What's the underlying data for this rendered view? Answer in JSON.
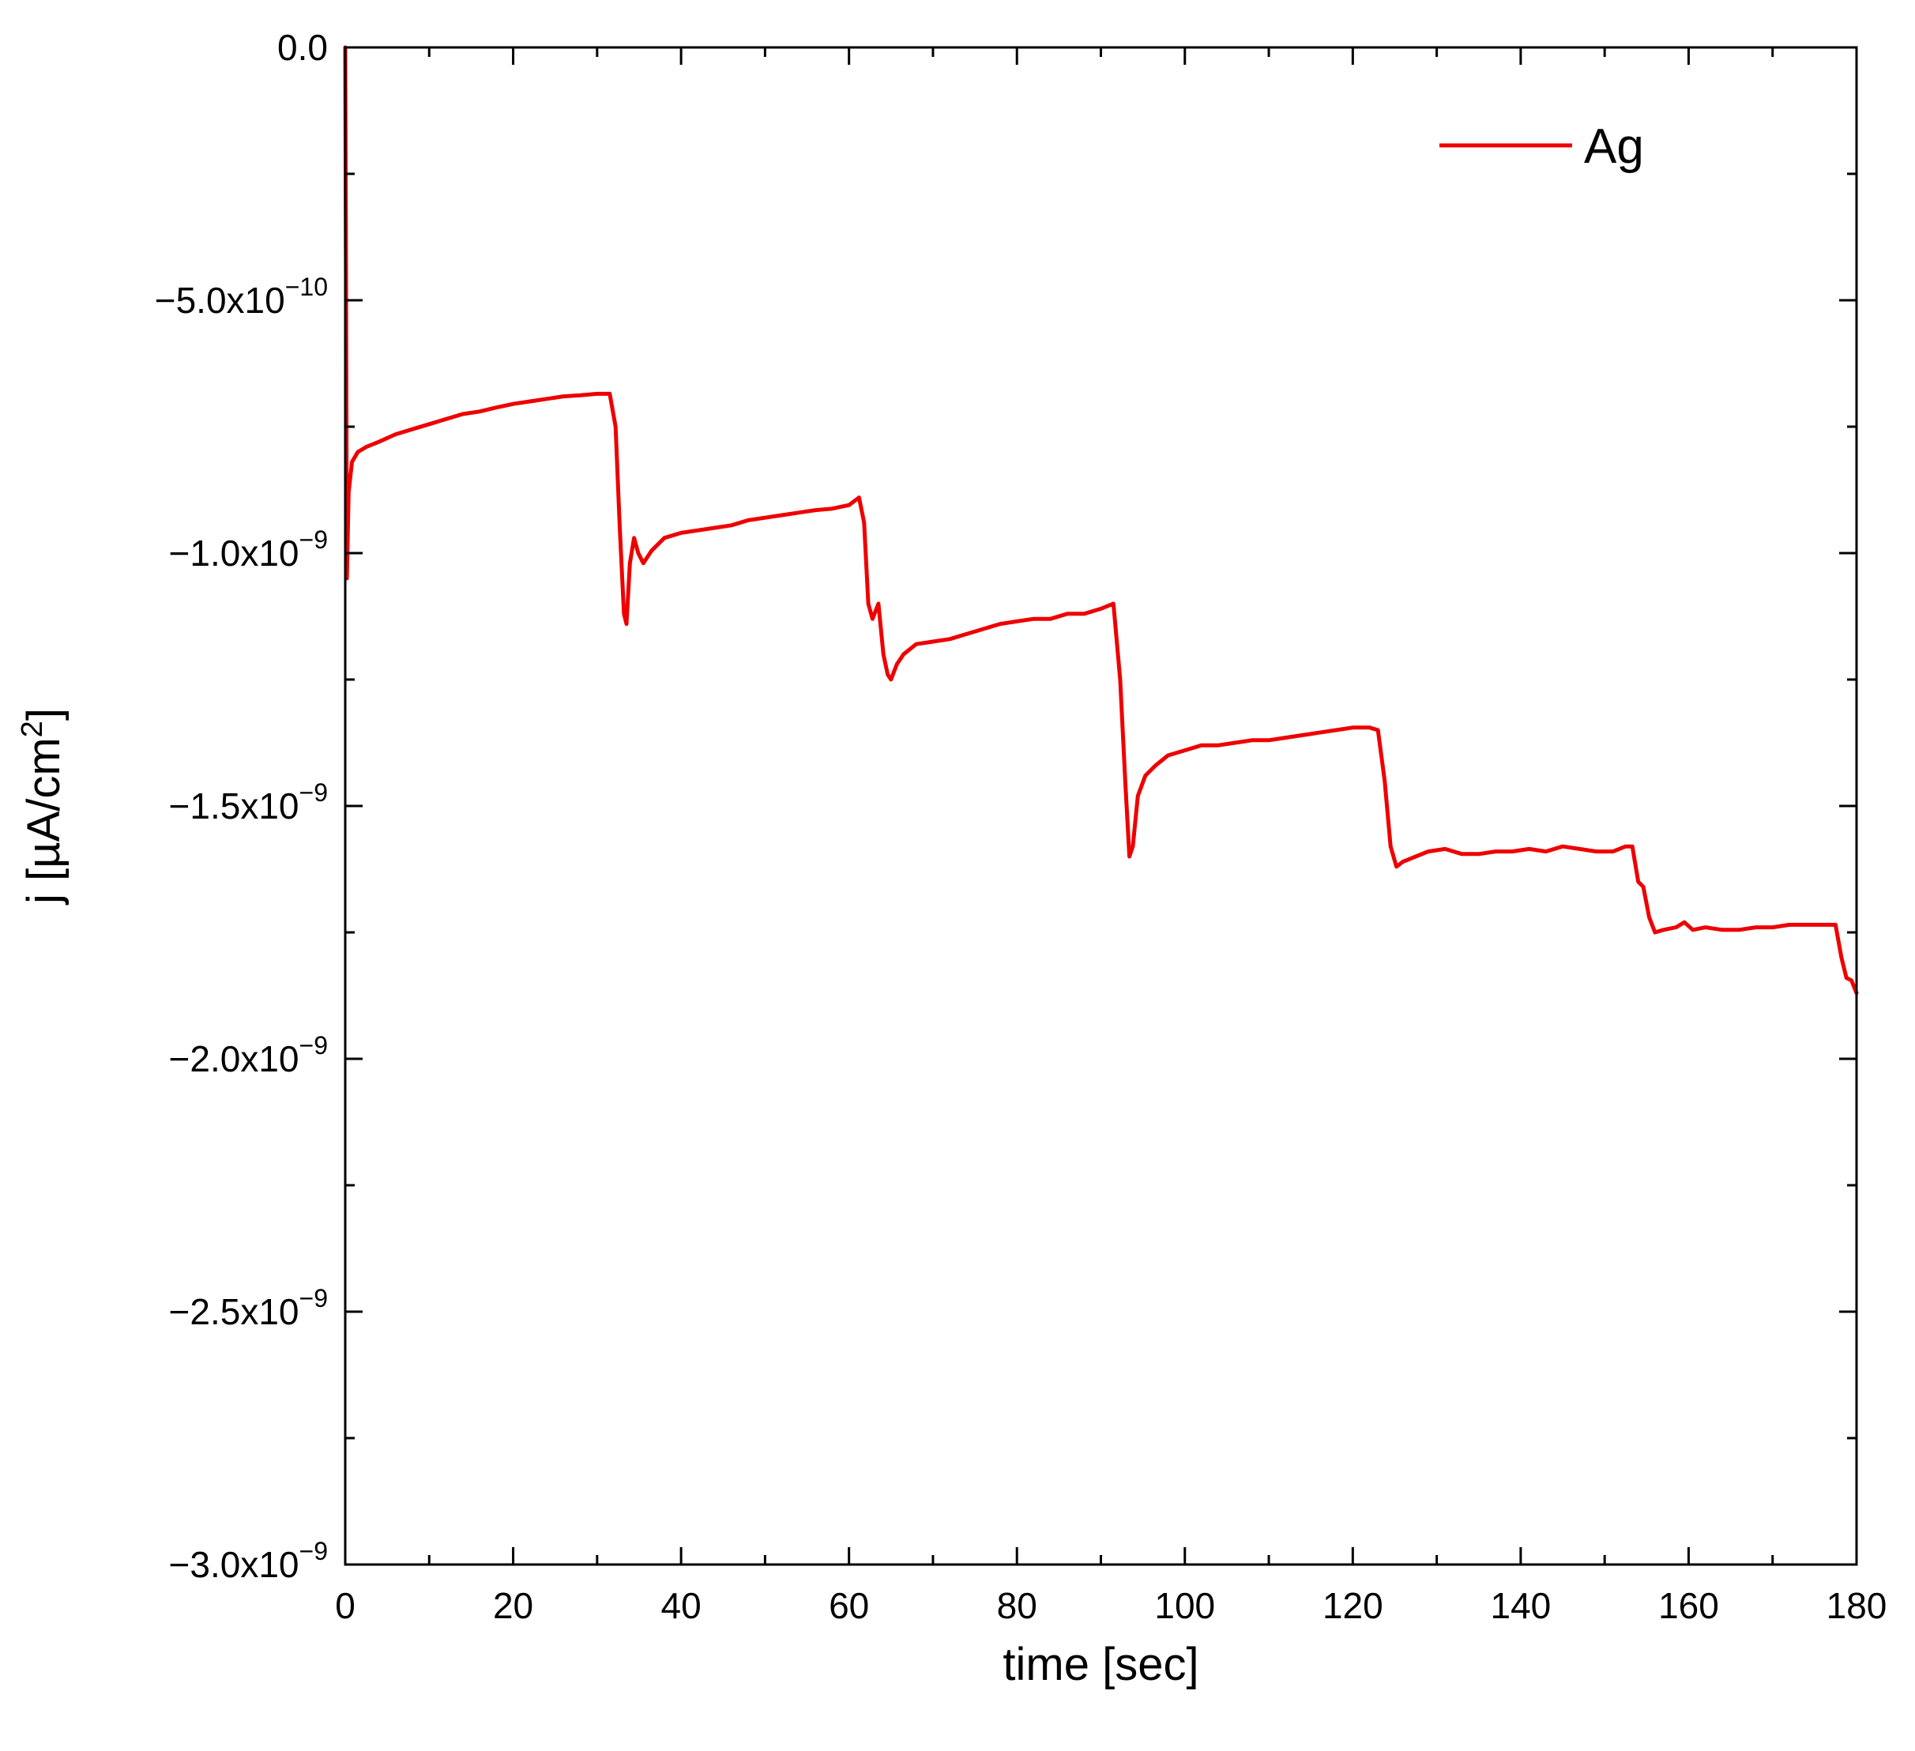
{
  "chart_data": {
    "type": "line",
    "title": "",
    "xlabel": "time [sec]",
    "ylabel_parts": {
      "prefix": "j [µA/cm",
      "sup": "2",
      "suffix": "]"
    },
    "xlim": [
      0,
      180
    ],
    "ylim": [
      -3e-09,
      0
    ],
    "grid": false,
    "legend_position": "top-right",
    "x_ticks": [
      {
        "value": 0,
        "label": "0"
      },
      {
        "value": 20,
        "label": "20"
      },
      {
        "value": 40,
        "label": "40"
      },
      {
        "value": 60,
        "label": "60"
      },
      {
        "value": 80,
        "label": "80"
      },
      {
        "value": 100,
        "label": "100"
      },
      {
        "value": 120,
        "label": "120"
      },
      {
        "value": 140,
        "label": "140"
      },
      {
        "value": 160,
        "label": "160"
      },
      {
        "value": 180,
        "label": "180"
      }
    ],
    "x_minor_ticks": [
      10,
      30,
      50,
      70,
      90,
      110,
      130,
      150,
      170
    ],
    "y_ticks": [
      {
        "value": 0,
        "mantissa": "0.0",
        "exponent": ""
      },
      {
        "value": -5e-10,
        "mantissa": "−5.0x10",
        "exponent": "−10"
      },
      {
        "value": -1e-09,
        "mantissa": "−1.0x10",
        "exponent": "−9"
      },
      {
        "value": -1.5e-09,
        "mantissa": "−1.5x10",
        "exponent": "−9"
      },
      {
        "value": -2e-09,
        "mantissa": "−2.0x10",
        "exponent": "−9"
      },
      {
        "value": -2.5e-09,
        "mantissa": "−2.5x10",
        "exponent": "−9"
      },
      {
        "value": -3e-09,
        "mantissa": "−3.0x10",
        "exponent": "−9"
      }
    ],
    "y_minor_ticks": [
      -2.5e-10,
      -7.5e-10,
      -1.25e-09,
      -1.75e-09,
      -2.25e-09,
      -2.75e-09
    ],
    "series": [
      {
        "name": "Ag",
        "color": "#ee0000",
        "points": [
          [
            0.0,
            0.0
          ],
          [
            0.1,
            -5e-10
          ],
          [
            0.2,
            -1.05e-09
          ],
          [
            0.4,
            -8.8e-10
          ],
          [
            0.8,
            -8.2e-10
          ],
          [
            1.5,
            -8e-10
          ],
          [
            2.5,
            -7.9e-10
          ],
          [
            4,
            -7.8e-10
          ],
          [
            6,
            -7.65e-10
          ],
          [
            8,
            -7.55e-10
          ],
          [
            10,
            -7.45e-10
          ],
          [
            12,
            -7.35e-10
          ],
          [
            14,
            -7.25e-10
          ],
          [
            16,
            -7.2e-10
          ],
          [
            18,
            -7.12e-10
          ],
          [
            20,
            -7.05e-10
          ],
          [
            22,
            -7e-10
          ],
          [
            24,
            -6.95e-10
          ],
          [
            26,
            -6.9e-10
          ],
          [
            28,
            -6.88e-10
          ],
          [
            30,
            -6.85e-10
          ],
          [
            31.5,
            -6.85e-10
          ],
          [
            32.2,
            -7.5e-10
          ],
          [
            32.7,
            -9.5e-10
          ],
          [
            33.2,
            -1.12e-09
          ],
          [
            33.5,
            -1.14e-09
          ],
          [
            33.9,
            -1.02e-09
          ],
          [
            34.4,
            -9.7e-10
          ],
          [
            34.9,
            -1e-09
          ],
          [
            35.5,
            -1.02e-09
          ],
          [
            36.5,
            -9.95e-10
          ],
          [
            38,
            -9.7e-10
          ],
          [
            40,
            -9.6e-10
          ],
          [
            42,
            -9.55e-10
          ],
          [
            44,
            -9.5e-10
          ],
          [
            46,
            -9.45e-10
          ],
          [
            48,
            -9.35e-10
          ],
          [
            50,
            -9.3e-10
          ],
          [
            52,
            -9.25e-10
          ],
          [
            54,
            -9.2e-10
          ],
          [
            56,
            -9.15e-10
          ],
          [
            58,
            -9.12e-10
          ],
          [
            60,
            -9.05e-10
          ],
          [
            61.2,
            -8.9e-10
          ],
          [
            61.8,
            -9.4e-10
          ],
          [
            62.3,
            -1.1e-09
          ],
          [
            62.8,
            -1.13e-09
          ],
          [
            63.5,
            -1.1e-09
          ],
          [
            64.1,
            -1.2e-09
          ],
          [
            64.6,
            -1.24e-09
          ],
          [
            65.0,
            -1.25e-09
          ],
          [
            65.7,
            -1.22e-09
          ],
          [
            66.5,
            -1.2e-09
          ],
          [
            68,
            -1.18e-09
          ],
          [
            70,
            -1.175e-09
          ],
          [
            72,
            -1.17e-09
          ],
          [
            74,
            -1.16e-09
          ],
          [
            76,
            -1.15e-09
          ],
          [
            78,
            -1.14e-09
          ],
          [
            80,
            -1.135e-09
          ],
          [
            82,
            -1.13e-09
          ],
          [
            84,
            -1.13e-09
          ],
          [
            86,
            -1.12e-09
          ],
          [
            88,
            -1.12e-09
          ],
          [
            90,
            -1.11e-09
          ],
          [
            91.5,
            -1.1e-09
          ],
          [
            92.3,
            -1.25e-09
          ],
          [
            92.9,
            -1.45e-09
          ],
          [
            93.4,
            -1.6e-09
          ],
          [
            93.8,
            -1.58e-09
          ],
          [
            94.4,
            -1.48e-09
          ],
          [
            95.3,
            -1.44e-09
          ],
          [
            96.5,
            -1.42e-09
          ],
          [
            98,
            -1.4e-09
          ],
          [
            100,
            -1.39e-09
          ],
          [
            102,
            -1.38e-09
          ],
          [
            104,
            -1.38e-09
          ],
          [
            106,
            -1.375e-09
          ],
          [
            108,
            -1.37e-09
          ],
          [
            110,
            -1.37e-09
          ],
          [
            112,
            -1.365e-09
          ],
          [
            114,
            -1.36e-09
          ],
          [
            116,
            -1.355e-09
          ],
          [
            118,
            -1.35e-09
          ],
          [
            120,
            -1.345e-09
          ],
          [
            122,
            -1.345e-09
          ],
          [
            123,
            -1.35e-09
          ],
          [
            123.8,
            -1.45e-09
          ],
          [
            124.5,
            -1.58e-09
          ],
          [
            125.2,
            -1.62e-09
          ],
          [
            126,
            -1.61e-09
          ],
          [
            127.5,
            -1.6e-09
          ],
          [
            129,
            -1.59e-09
          ],
          [
            131,
            -1.585e-09
          ],
          [
            133,
            -1.595e-09
          ],
          [
            135,
            -1.595e-09
          ],
          [
            137,
            -1.59e-09
          ],
          [
            139,
            -1.59e-09
          ],
          [
            141,
            -1.585e-09
          ],
          [
            143,
            -1.59e-09
          ],
          [
            145,
            -1.58e-09
          ],
          [
            147,
            -1.585e-09
          ],
          [
            149,
            -1.59e-09
          ],
          [
            151,
            -1.59e-09
          ],
          [
            152.5,
            -1.58e-09
          ],
          [
            153.3,
            -1.58e-09
          ],
          [
            154.0,
            -1.65e-09
          ],
          [
            154.6,
            -1.66e-09
          ],
          [
            155.3,
            -1.72e-09
          ],
          [
            156.0,
            -1.75e-09
          ],
          [
            157,
            -1.745e-09
          ],
          [
            158.5,
            -1.74e-09
          ],
          [
            159.5,
            -1.73e-09
          ],
          [
            160.5,
            -1.745e-09
          ],
          [
            162,
            -1.74e-09
          ],
          [
            164,
            -1.745e-09
          ],
          [
            166,
            -1.745e-09
          ],
          [
            168,
            -1.74e-09
          ],
          [
            170,
            -1.74e-09
          ],
          [
            172,
            -1.735e-09
          ],
          [
            174,
            -1.735e-09
          ],
          [
            176,
            -1.735e-09
          ],
          [
            177.5,
            -1.735e-09
          ],
          [
            178.2,
            -1.8e-09
          ],
          [
            178.8,
            -1.84e-09
          ],
          [
            179.4,
            -1.845e-09
          ],
          [
            180,
            -1.87e-09
          ]
        ]
      }
    ]
  }
}
